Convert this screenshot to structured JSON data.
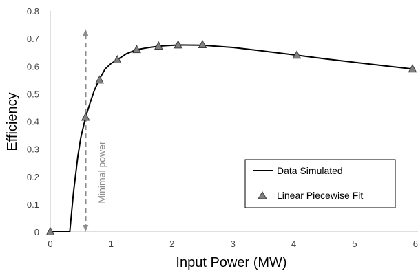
{
  "chart_data": {
    "type": "line",
    "xlabel": "Input Power (MW)",
    "ylabel": "Efficiency",
    "xlim": [
      0,
      6
    ],
    "ylim": [
      0,
      0.8
    ],
    "x_ticks": [
      "0",
      "1",
      "2",
      "3",
      "4",
      "5",
      "6"
    ],
    "y_ticks": [
      "0",
      "0.1",
      "0.2",
      "0.3",
      "0.4",
      "0.5",
      "0.6",
      "0.7",
      "0.8"
    ],
    "grid": false,
    "legend_position": "bottom-right",
    "series": [
      {
        "name": "Data Simulated",
        "style": "line",
        "color": "#000000",
        "x": [
          0,
          0.32,
          0.38,
          0.45,
          0.5,
          0.58,
          0.65,
          0.72,
          0.8,
          0.9,
          1.0,
          1.1,
          1.25,
          1.42,
          1.6,
          1.8,
          2.1,
          2.5,
          3.0,
          3.5,
          4.05,
          4.5,
          5.0,
          5.5,
          5.95
        ],
        "y": [
          0,
          0,
          0.14,
          0.27,
          0.34,
          0.415,
          0.465,
          0.51,
          0.55,
          0.59,
          0.61,
          0.623,
          0.645,
          0.66,
          0.667,
          0.673,
          0.677,
          0.676,
          0.668,
          0.655,
          0.64,
          0.627,
          0.614,
          0.601,
          0.59
        ]
      },
      {
        "name": "Linear Piecewise Fit",
        "style": "markers",
        "marker": "triangle",
        "color": "#808080",
        "x": [
          0,
          0.58,
          0.81,
          1.1,
          1.42,
          1.78,
          2.1,
          2.5,
          4.05,
          5.95
        ],
        "y": [
          0,
          0.415,
          0.55,
          0.623,
          0.66,
          0.673,
          0.677,
          0.678,
          0.64,
          0.59
        ]
      }
    ],
    "annotations": [
      {
        "text": "Minimal power",
        "x": 0.58,
        "y_from": 0,
        "y_to": 0.73,
        "style": "dashed-double-arrow",
        "color": "#8c8c8c"
      }
    ]
  }
}
